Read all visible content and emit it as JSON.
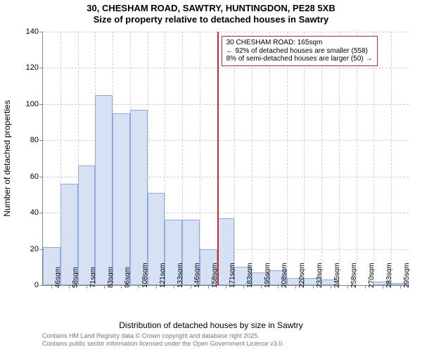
{
  "title_line1": "30, CHESHAM ROAD, SAWTRY, HUNTINGDON, PE28 5XB",
  "title_line2": "Size of property relative to detached houses in Sawtry",
  "ylabel": "Number of detached properties",
  "xlabel": "Distribution of detached houses by size in Sawtry",
  "attribution_line1": "Contains HM Land Registry data © Crown copyright and database right 2025.",
  "attribution_line2": "Contains public sector information licensed under the Open Government Licence v3.0.",
  "chart": {
    "type": "histogram",
    "ylim": [
      0,
      140
    ],
    "ytick_step": 20,
    "bar_fill": "#d6e1f3",
    "bar_stroke": "#8faadc",
    "grid_color": "#cfcfcf",
    "axis_color": "#888888",
    "background_color": "#ffffff",
    "reference_line": {
      "x_index": 10,
      "color": "#d62728"
    },
    "annotation": {
      "line1": "30 CHESHAM ROAD: 165sqm",
      "line2": "← 92% of detached houses are smaller (558)",
      "line3": "8% of semi-detached houses are larger (50) →",
      "border_color": "#d62728"
    },
    "categories": [
      "46sqm",
      "58sqm",
      "71sqm",
      "83sqm",
      "96sqm",
      "108sqm",
      "121sqm",
      "133sqm",
      "146sqm",
      "158sqm",
      "171sqm",
      "183sqm",
      "195sqm",
      "208sqm",
      "220sqm",
      "233sqm",
      "245sqm",
      "258sqm",
      "270sqm",
      "283sqm",
      "295sqm"
    ],
    "values": [
      21,
      56,
      66,
      105,
      95,
      97,
      51,
      36,
      36,
      20,
      37,
      10,
      7,
      8,
      4,
      4,
      3,
      0,
      0,
      2,
      1
    ],
    "title_fontsize": 13,
    "label_fontsize": 12,
    "tick_fontsize": 11,
    "xtick_fontsize": 10,
    "xtick_rotation": -90,
    "attrib_fontsize": 9,
    "attrib_color": "#777777"
  }
}
